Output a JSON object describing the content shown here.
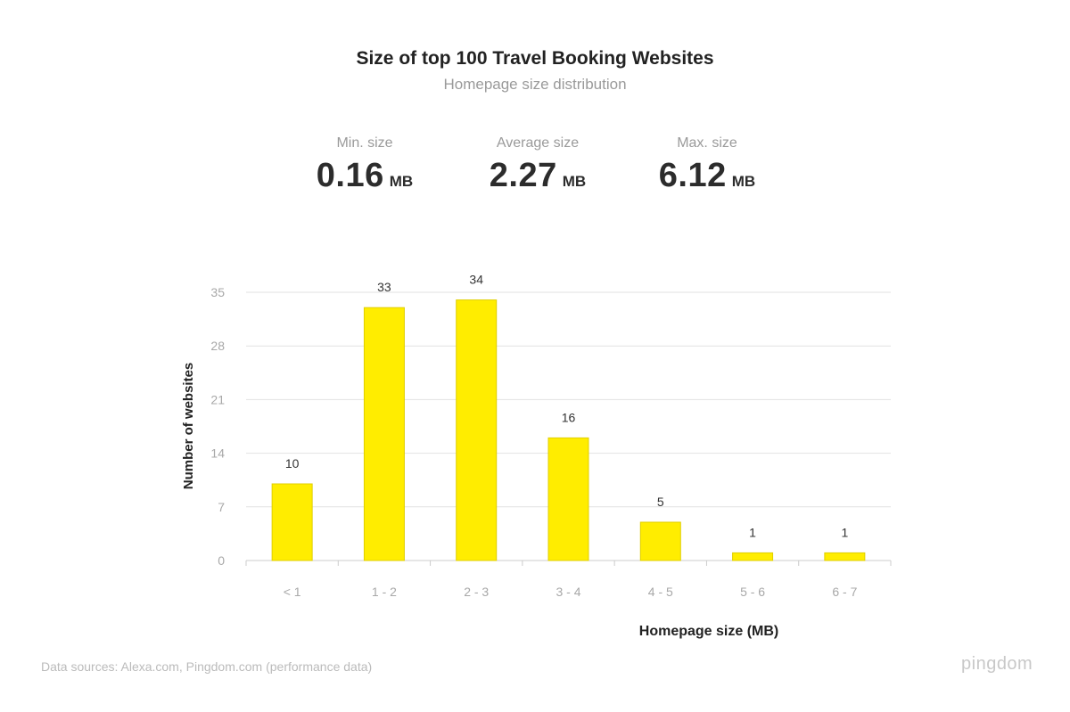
{
  "header": {
    "title": "Size of top 100 Travel Booking Websites",
    "subtitle": "Homepage size distribution"
  },
  "stats": [
    {
      "label": "Min. size",
      "value": "0.16",
      "unit": "MB"
    },
    {
      "label": "Average size",
      "value": "2.27",
      "unit": "MB"
    },
    {
      "label": "Max. size",
      "value": "6.12",
      "unit": "MB"
    }
  ],
  "chart_data": {
    "type": "bar",
    "categories": [
      "< 1",
      "1 - 2",
      "2 - 3",
      "3 - 4",
      "4 - 5",
      "5 - 6",
      "6 - 7"
    ],
    "values": [
      10,
      33,
      34,
      16,
      5,
      1,
      1
    ],
    "xlabel": "Homepage size (MB)",
    "ylabel": "Number of  websites",
    "ylim": [
      0,
      35
    ],
    "yticks": [
      0,
      7,
      14,
      21,
      28,
      35
    ],
    "grid": true,
    "bar_color": "#ffed00",
    "bar_border": "#e0cf00"
  },
  "footer": {
    "source": "Data sources: Alexa.com, Pingdom.com (performance data)",
    "logo": "pingdom"
  }
}
